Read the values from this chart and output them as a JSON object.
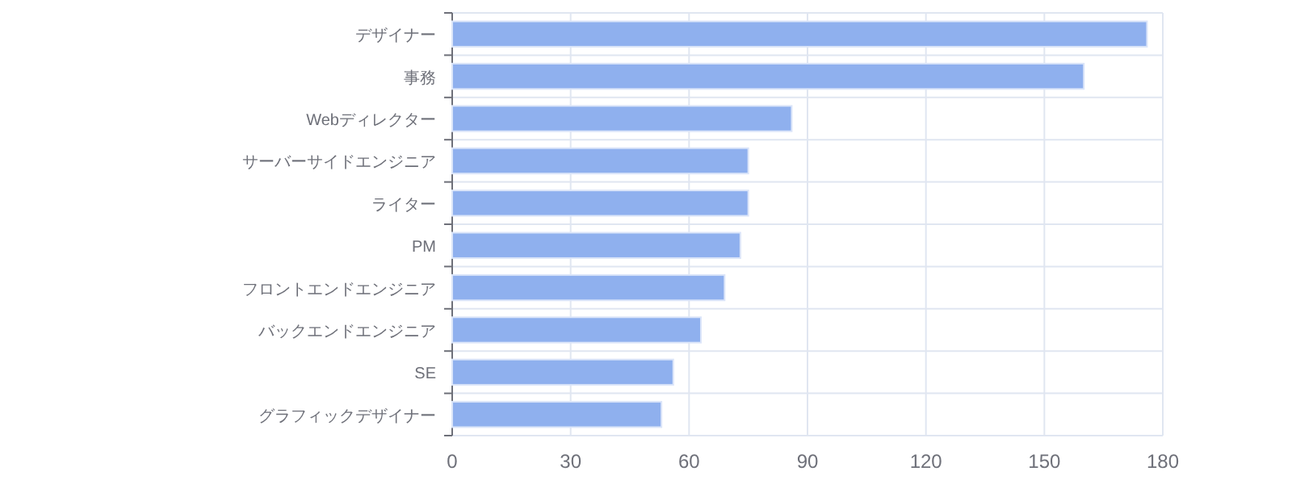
{
  "chart_data": {
    "type": "bar",
    "orientation": "horizontal",
    "categories": [
      "デザイナー",
      "事務",
      "Webディレクター",
      "サーバーサイドエンジニア",
      "ライター",
      "PM",
      "フロントエンドエンジニア",
      "バックエンドエンジニア",
      "SE",
      "グラフィックデザイナー"
    ],
    "values": [
      176,
      160,
      86,
      75,
      75,
      73,
      69,
      63,
      56,
      53
    ],
    "color": "#8fb0ee",
    "xlim": [
      0,
      180
    ],
    "xticks": [
      0,
      30,
      60,
      90,
      120,
      150,
      180
    ],
    "grid": true
  }
}
